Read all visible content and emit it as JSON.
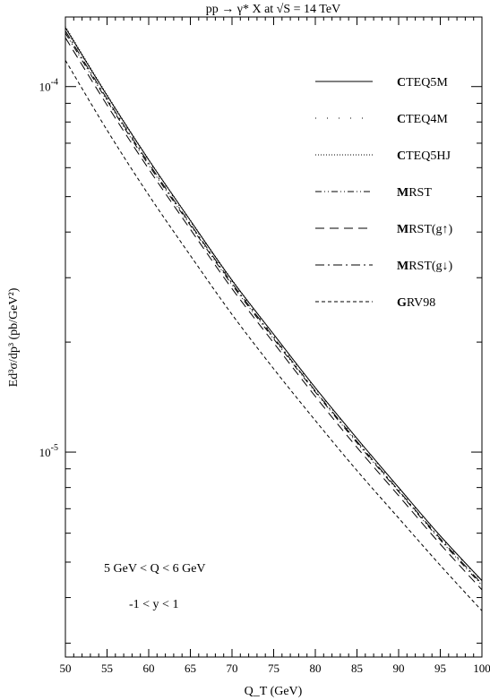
{
  "chart_data": {
    "type": "line",
    "title": "pp → γ* X at √S = 14 TeV",
    "xlabel": "Q_T (GeV)",
    "ylabel": "Ed³σ/dp³ (pb/GeV²)",
    "yscale": "log",
    "xlim": [
      50,
      100
    ],
    "ylim": [
      2.75e-06,
      0.000155
    ],
    "x_ticks": [
      "50",
      "55",
      "60",
      "65",
      "70",
      "75",
      "80",
      "85",
      "90",
      "95",
      "100"
    ],
    "y_ticks": [
      {
        "base": "10",
        "exp": "-4",
        "value": 0.0001
      },
      {
        "base": "10",
        "exp": "-5",
        "value": 1e-05
      }
    ],
    "x": [
      50,
      55,
      60,
      65,
      70,
      75,
      80,
      85,
      90,
      95,
      100
    ],
    "legend_position": "top-right",
    "series": [
      {
        "name": "CTEQ5M",
        "style": "solid",
        "values": [
          0.000145,
          9.45e-05,
          6.3e-05,
          4.3e-05,
          2.95e-05,
          2.1e-05,
          1.5e-05,
          1.09e-05,
          8e-06,
          5.9e-06,
          4.45e-06
        ]
      },
      {
        "name": "CTEQ4M",
        "style": "sparse-dot",
        "values": [
          0.000144,
          9.4e-05,
          6.25e-05,
          4.27e-05,
          2.93e-05,
          2.08e-05,
          1.49e-05,
          1.08e-05,
          7.95e-06,
          5.85e-06,
          4.42e-06
        ]
      },
      {
        "name": "CTEQ5HJ",
        "style": "dotted",
        "values": [
          0.000146,
          9.5e-05,
          6.32e-05,
          4.31e-05,
          2.96e-05,
          2.1e-05,
          1.5e-05,
          1.09e-05,
          8e-06,
          5.9e-06,
          4.45e-06
        ]
      },
      {
        "name": "MRST",
        "style": "dash-dot-dot",
        "values": [
          0.00014,
          9.15e-05,
          6.1e-05,
          4.17e-05,
          2.87e-05,
          2.04e-05,
          1.46e-05,
          1.06e-05,
          7.8e-06,
          5.75e-06,
          4.32e-06
        ]
      },
      {
        "name": "MRST(g↑)",
        "style": "long-dash",
        "values": [
          0.000136,
          8.9e-05,
          5.95e-05,
          4.07e-05,
          2.8e-05,
          1.99e-05,
          1.42e-05,
          1.03e-05,
          7.6e-06,
          5.6e-06,
          4.2e-06
        ]
      },
      {
        "name": "MRST(g↓)",
        "style": "dash-dot",
        "values": [
          0.000142,
          9.25e-05,
          6.17e-05,
          4.21e-05,
          2.9e-05,
          2.06e-05,
          1.47e-05,
          1.07e-05,
          7.85e-06,
          5.8e-06,
          4.36e-06
        ]
      },
      {
        "name": "GRV98",
        "style": "short-dash",
        "values": [
          0.000118,
          7.6e-05,
          5.05e-05,
          3.45e-05,
          2.38e-05,
          1.69e-05,
          1.22e-05,
          8.9e-06,
          6.6e-06,
          4.9e-06,
          3.68e-06
        ]
      }
    ],
    "annotations": [
      "5 GeV < Q < 6 GeV",
      "-1 < y < 1"
    ]
  }
}
